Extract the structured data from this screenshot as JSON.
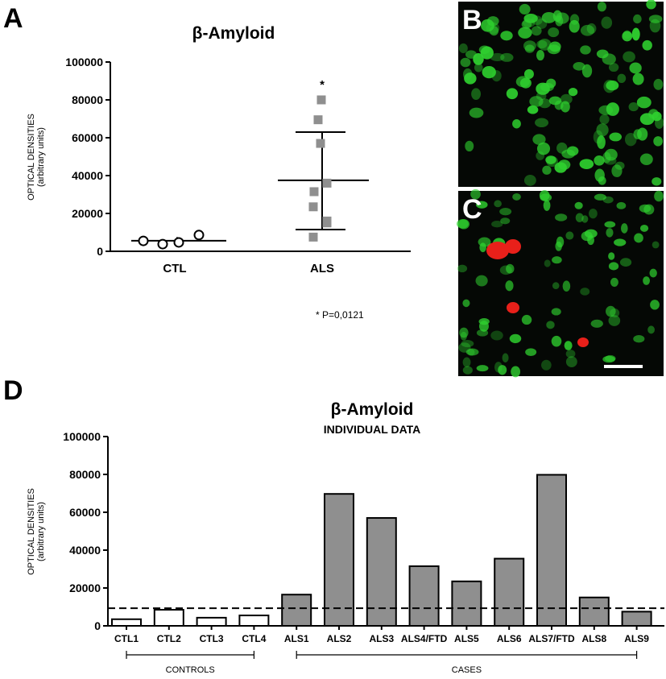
{
  "panels": {
    "a": {
      "letter": "A"
    },
    "b": {
      "letter": "B"
    },
    "c": {
      "letter": "C"
    },
    "d": {
      "letter": "D"
    }
  },
  "colors": {
    "bar_ctl": "#ffffff",
    "bar_als": "#8f8f8f",
    "marker_als": "#8f8f8f",
    "micrograph_bg": "#050805",
    "green_stain": "#2fd12f",
    "red_stain": "#e8201a"
  },
  "chart_data": [
    {
      "id": "A",
      "type": "scatter",
      "title": "β-Amyloid",
      "ylabel_line1": "OPTICAL DENSITIES",
      "ylabel_line2": "(arbitrary units)",
      "ylim": [
        0,
        100000
      ],
      "yticks": [
        "0",
        "20000",
        "40000",
        "60000",
        "80000",
        "100000"
      ],
      "categories": [
        "CTL",
        "ALS"
      ],
      "series": [
        {
          "name": "CTL",
          "values": [
            5500,
            3800,
            4700,
            8600
          ],
          "mean": 5600,
          "sd_upper": 7500,
          "sd_lower": 3700
        },
        {
          "name": "ALS",
          "values": [
            80000,
            69500,
            57000,
            36000,
            31500,
            23500,
            16000,
            7500,
            15000
          ],
          "mean": 37500,
          "sd_upper": 63000,
          "sd_lower": 11500
        }
      ],
      "significance_marker": "*",
      "annotation": "* P=0,0121",
      "grid": false
    },
    {
      "id": "D",
      "type": "bar",
      "title": "β-Amyloid",
      "subtitle": "INDIVIDUAL DATA",
      "ylabel_line1": "OPTICAL DENSITIES",
      "ylabel_line2": "(arbitrary units)",
      "ylim": [
        0,
        100000
      ],
      "yticks": [
        "0",
        "20000",
        "40000",
        "60000",
        "80000",
        "100000"
      ],
      "categories": [
        "CTL1",
        "CTL2",
        "CTL3",
        "CTL4",
        "ALS1",
        "ALS2",
        "ALS3",
        "ALS4/FTD",
        "ALS5",
        "ALS6",
        "ALS7/FTD",
        "ALS8",
        "ALS9"
      ],
      "values": [
        3500,
        8500,
        4300,
        5500,
        16500,
        69700,
        57000,
        31500,
        23500,
        35500,
        79800,
        15000,
        7500
      ],
      "threshold": 9300,
      "group_labels": [
        {
          "label": "CONTROLS",
          "from": "CTL1",
          "to": "CTL4"
        },
        {
          "label": "CASES",
          "from": "ALS1",
          "to": "ALS9"
        }
      ],
      "grid": false
    }
  ]
}
